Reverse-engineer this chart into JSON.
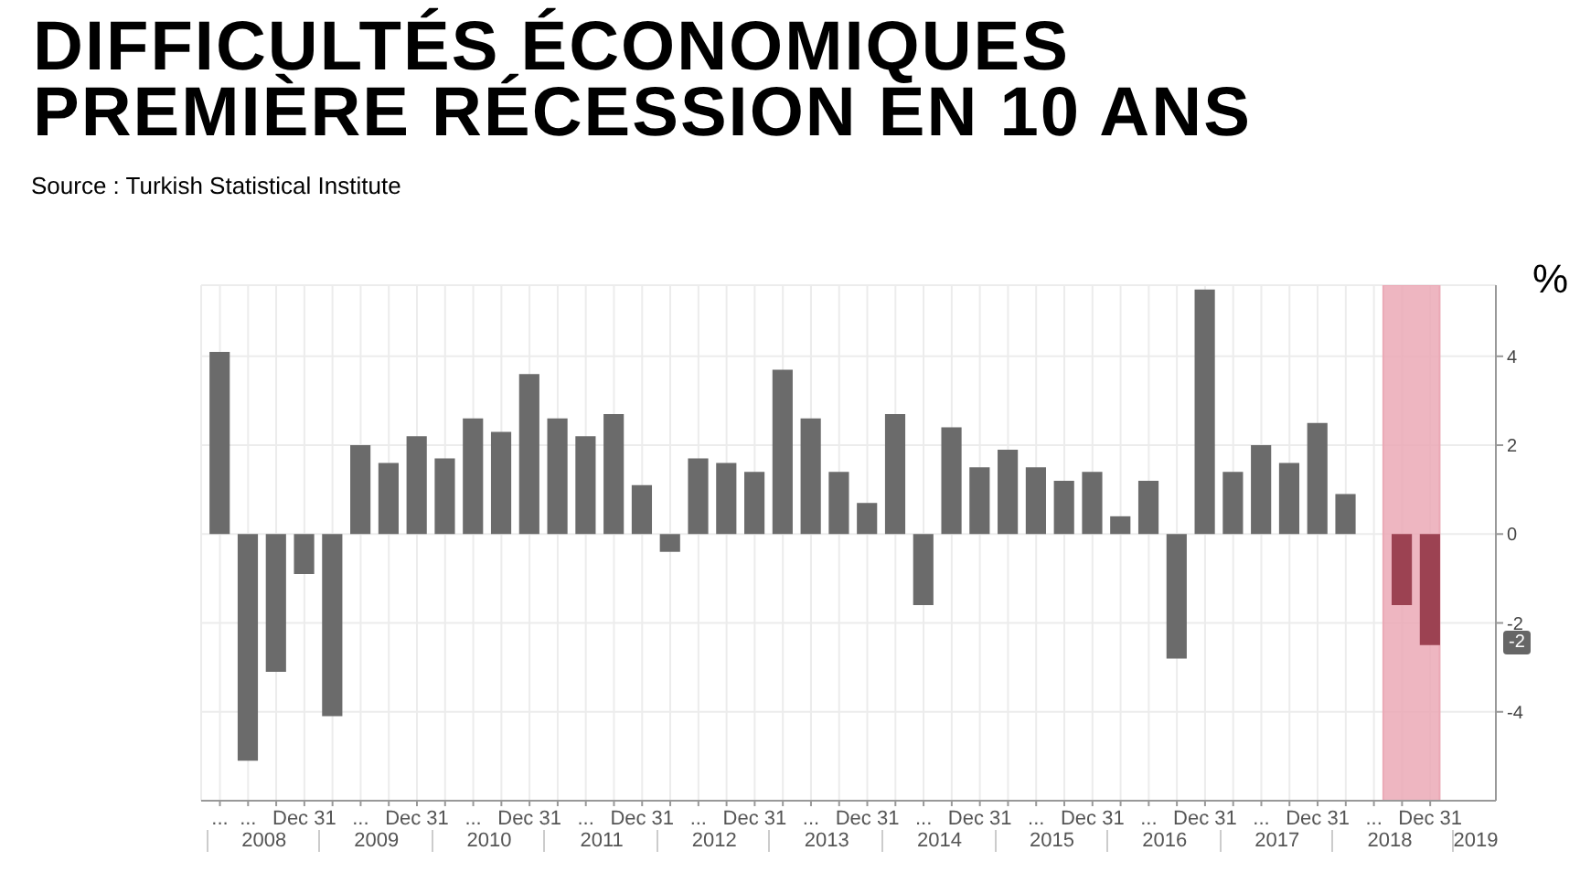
{
  "chart_data": {
    "type": "bar",
    "title": "DIFFICULTÉS ÉCONOMIQUES",
    "subtitle": "PREMIÈRE RÉCESSION EN 10 ANS",
    "ylabel": "%",
    "x": [
      "2008-03",
      "2008-06",
      "2008-09",
      "2008-12",
      "2009-03",
      "2009-06",
      "2009-09",
      "2009-12",
      "2010-03",
      "2010-06",
      "2010-09",
      "2010-12",
      "2011-03",
      "2011-06",
      "2011-09",
      "2011-12",
      "2012-03",
      "2012-06",
      "2012-09",
      "2012-12",
      "2013-03",
      "2013-06",
      "2013-09",
      "2013-12",
      "2014-03",
      "2014-06",
      "2014-09",
      "2014-12",
      "2015-03",
      "2015-06",
      "2015-09",
      "2015-12",
      "2016-03",
      "2016-06",
      "2016-09",
      "2016-12",
      "2017-03",
      "2017-06",
      "2017-09",
      "2017-12",
      "2018-03",
      "2018-06",
      "2018-09",
      "2018-12"
    ],
    "values": [
      4.1,
      -5.1,
      -3.1,
      -0.9,
      -4.1,
      2.0,
      1.6,
      2.2,
      1.7,
      2.6,
      2.3,
      3.6,
      2.6,
      2.2,
      2.7,
      1.1,
      -0.4,
      1.7,
      1.6,
      1.4,
      3.7,
      2.6,
      1.4,
      0.7,
      2.7,
      -1.6,
      2.4,
      1.5,
      1.9,
      1.5,
      1.2,
      1.4,
      0.4,
      1.2,
      -2.8,
      5.5,
      1.4,
      2.0,
      1.6,
      2.5,
      0.9,
      0.0,
      -1.6,
      -2.5
    ],
    "colors": [
      "#6b6b6b",
      "#6b6b6b",
      "#6b6b6b",
      "#6b6b6b",
      "#6b6b6b",
      "#6b6b6b",
      "#6b6b6b",
      "#6b6b6b",
      "#6b6b6b",
      "#6b6b6b",
      "#6b6b6b",
      "#6b6b6b",
      "#6b6b6b",
      "#6b6b6b",
      "#6b6b6b",
      "#6b6b6b",
      "#6b6b6b",
      "#6b6b6b",
      "#6b6b6b",
      "#6b6b6b",
      "#6b6b6b",
      "#6b6b6b",
      "#6b6b6b",
      "#6b6b6b",
      "#6b6b6b",
      "#6b6b6b",
      "#6b6b6b",
      "#6b6b6b",
      "#6b6b6b",
      "#6b6b6b",
      "#6b6b6b",
      "#6b6b6b",
      "#6b6b6b",
      "#6b6b6b",
      "#6b6b6b",
      "#6b6b6b",
      "#6b6b6b",
      "#6b6b6b",
      "#6b6b6b",
      "#6b6b6b",
      "#6b6b6b",
      "#6b6b6b",
      "#9c4252",
      "#9c4252"
    ],
    "xlim": [
      "2008-01",
      "2019-07"
    ],
    "xticks": [
      {
        "value": "2008-03",
        "label": "..."
      },
      {
        "value": "2008-06",
        "label": "..."
      },
      {
        "value": "2008-09",
        "label": null
      },
      {
        "value": "2008-12",
        "label": "Dec 31"
      },
      {
        "value": "2009-03",
        "label": null
      },
      {
        "value": "2009-06",
        "label": "..."
      },
      {
        "value": "2009-09",
        "label": null
      },
      {
        "value": "2009-12",
        "label": "Dec 31"
      },
      {
        "value": "2010-03",
        "label": null
      },
      {
        "value": "2010-06",
        "label": "..."
      },
      {
        "value": "2010-09",
        "label": null
      },
      {
        "value": "2010-12",
        "label": "Dec 31"
      },
      {
        "value": "2011-03",
        "label": null
      },
      {
        "value": "2011-06",
        "label": "..."
      },
      {
        "value": "2011-09",
        "label": null
      },
      {
        "value": "2011-12",
        "label": "Dec 31"
      },
      {
        "value": "2012-03",
        "label": null
      },
      {
        "value": "2012-06",
        "label": "..."
      },
      {
        "value": "2012-09",
        "label": null
      },
      {
        "value": "2012-12",
        "label": "Dec 31"
      },
      {
        "value": "2013-03",
        "label": null
      },
      {
        "value": "2013-06",
        "label": "..."
      },
      {
        "value": "2013-09",
        "label": null
      },
      {
        "value": "2013-12",
        "label": "Dec 31"
      },
      {
        "value": "2014-03",
        "label": null
      },
      {
        "value": "2014-06",
        "label": "..."
      },
      {
        "value": "2014-09",
        "label": null
      },
      {
        "value": "2014-12",
        "label": "Dec 31"
      },
      {
        "value": "2015-03",
        "label": null
      },
      {
        "value": "2015-06",
        "label": "..."
      },
      {
        "value": "2015-09",
        "label": null
      },
      {
        "value": "2015-12",
        "label": "Dec 31"
      },
      {
        "value": "2016-03",
        "label": null
      },
      {
        "value": "2016-06",
        "label": "..."
      },
      {
        "value": "2016-09",
        "label": null
      },
      {
        "value": "2016-12",
        "label": "Dec 31"
      },
      {
        "value": "2017-03",
        "label": null
      },
      {
        "value": "2017-06",
        "label": "..."
      },
      {
        "value": "2017-09",
        "label": null
      },
      {
        "value": "2017-12",
        "label": "Dec 31"
      },
      {
        "value": "2018-03",
        "label": null
      },
      {
        "value": "2018-06",
        "label": "..."
      },
      {
        "value": "2018-09",
        "label": null
      },
      {
        "value": "2018-12",
        "label": "Dec 31"
      }
    ],
    "ylim": [
      -6,
      5.6
    ],
    "yticks": [
      -4,
      -2,
      0,
      2,
      4
    ],
    "grid": true,
    "bands": [
      {
        "axis": "x",
        "from": "2018-07",
        "to": "2019-01",
        "color": "#eba9b6"
      }
    ],
    "annotations": [
      "Source : Turkish Statistical Institute",
      "2008",
      "2009",
      "2010",
      "2011",
      "2012",
      "2013",
      "2014",
      "2015",
      "2016",
      "2017",
      "2018",
      "2019",
      "-2"
    ]
  }
}
